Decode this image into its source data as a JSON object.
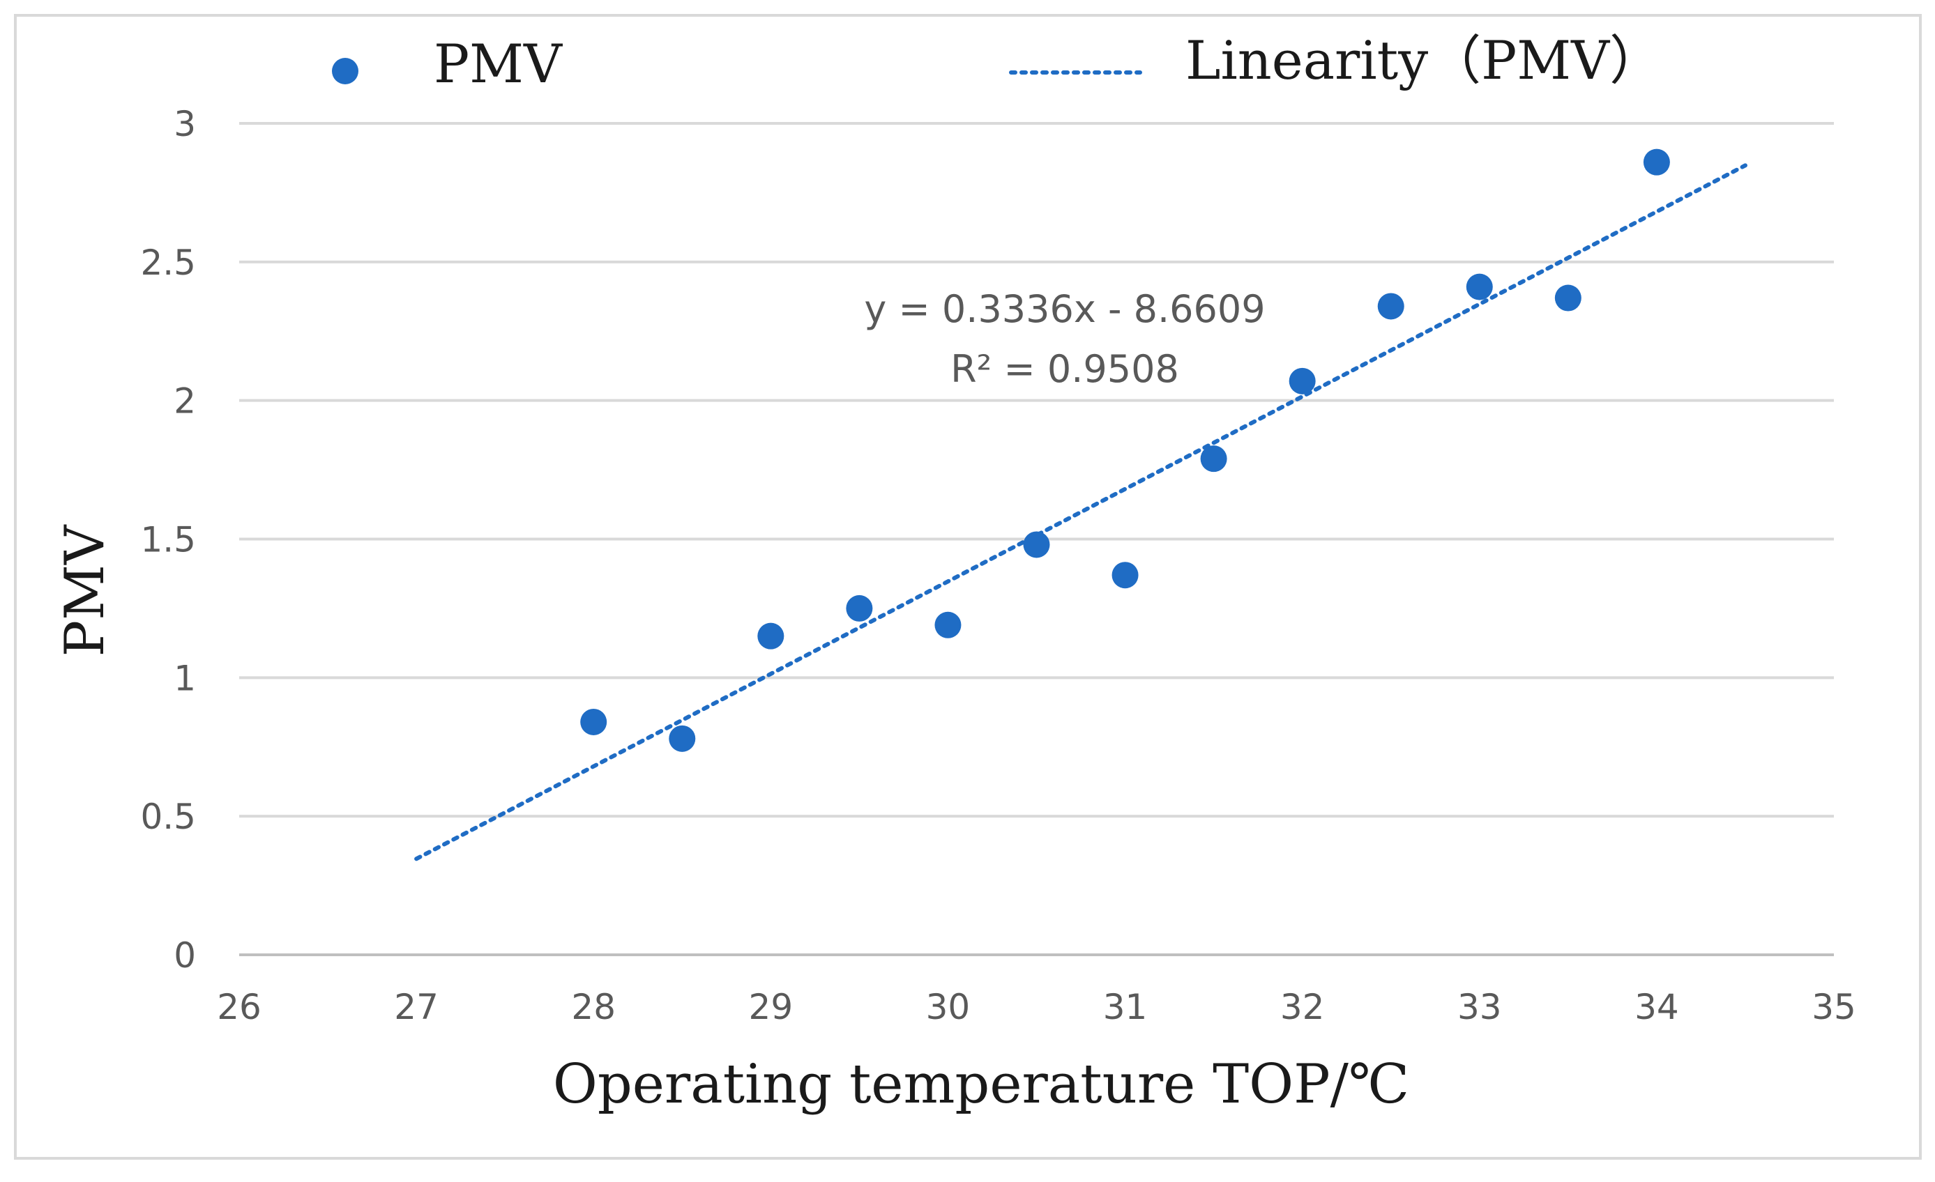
{
  "chart_data": {
    "type": "scatter",
    "title": "",
    "xlabel": "Operating temperature TOP/℃",
    "ylabel": "PMV",
    "xlim": [
      26,
      35
    ],
    "ylim": [
      0,
      3
    ],
    "x_ticks": [
      26,
      27,
      28,
      29,
      30,
      31,
      32,
      33,
      34,
      35
    ],
    "y_ticks": [
      0,
      0.5,
      1,
      1.5,
      2,
      2.5,
      3
    ],
    "grid": "horizontal",
    "legend_position": "top",
    "legend": {
      "series_label": "PMV",
      "trend_label": "Linearity（PMV）"
    },
    "series": [
      {
        "name": "PMV",
        "color": "#1f6cc4",
        "x": [
          28,
          28.5,
          29,
          29.5,
          30,
          30.5,
          31,
          31.5,
          32,
          32.5,
          33,
          33.5,
          34
        ],
        "y": [
          0.84,
          0.78,
          1.15,
          1.25,
          1.19,
          1.48,
          1.37,
          1.79,
          2.07,
          2.34,
          2.41,
          2.37,
          2.86
        ]
      }
    ],
    "trendline": {
      "name": "Linearity（PMV）",
      "slope": 0.3336,
      "intercept": -8.6609,
      "x_range": [
        27,
        34.5
      ],
      "equation_text": "y = 0.3336x - 8.6609",
      "r2_text": "R² = 0.9508"
    }
  }
}
